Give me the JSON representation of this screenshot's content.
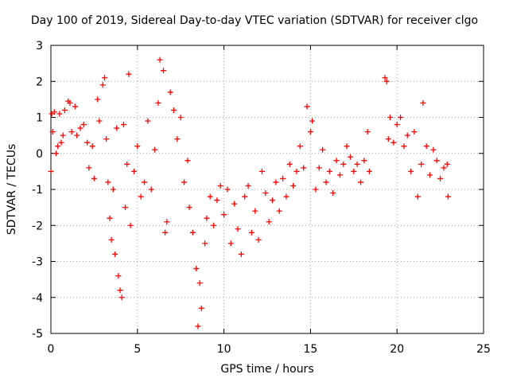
{
  "chart_data": {
    "type": "scatter",
    "title": "Day 100 of 2019, Sidereal Day-to-day VTEC variation (SDTVAR) for receiver clgo",
    "xlabel": "GPS time / hours",
    "ylabel": "SDTVAR / TECUs",
    "xlim": [
      0,
      25
    ],
    "ylim": [
      -5,
      3
    ],
    "xticks": [
      0,
      5,
      10,
      15,
      20,
      25
    ],
    "yticks": [
      -5,
      -4,
      -3,
      -2,
      -1,
      0,
      1,
      2,
      3
    ],
    "grid": true,
    "marker": "+",
    "color": "#ff0000",
    "series": [
      {
        "name": "SDTVAR",
        "points": [
          [
            0.0,
            -0.5
          ],
          [
            0.05,
            1.1
          ],
          [
            0.1,
            0.6
          ],
          [
            0.2,
            1.15
          ],
          [
            0.3,
            0.0
          ],
          [
            0.4,
            0.2
          ],
          [
            0.5,
            1.1
          ],
          [
            0.6,
            0.3
          ],
          [
            0.7,
            0.5
          ],
          [
            0.8,
            1.2
          ],
          [
            1.0,
            1.45
          ],
          [
            1.1,
            1.4
          ],
          [
            1.2,
            0.6
          ],
          [
            1.4,
            1.3
          ],
          [
            1.5,
            0.5
          ],
          [
            1.7,
            0.7
          ],
          [
            1.9,
            0.8
          ],
          [
            2.1,
            0.3
          ],
          [
            2.2,
            -0.4
          ],
          [
            2.4,
            0.2
          ],
          [
            2.5,
            -0.7
          ],
          [
            2.7,
            1.5
          ],
          [
            2.8,
            0.9
          ],
          [
            3.0,
            1.9
          ],
          [
            3.1,
            2.1
          ],
          [
            3.2,
            0.4
          ],
          [
            3.3,
            -0.8
          ],
          [
            3.4,
            -1.8
          ],
          [
            3.5,
            -2.4
          ],
          [
            3.6,
            -1.0
          ],
          [
            3.7,
            -2.8
          ],
          [
            3.8,
            0.7
          ],
          [
            3.9,
            -3.4
          ],
          [
            4.0,
            -3.8
          ],
          [
            4.1,
            -4.0
          ],
          [
            4.2,
            0.8
          ],
          [
            4.3,
            -1.5
          ],
          [
            4.4,
            -0.3
          ],
          [
            4.5,
            2.2
          ],
          [
            4.6,
            -2.0
          ],
          [
            4.8,
            -0.5
          ],
          [
            5.0,
            0.2
          ],
          [
            5.2,
            -1.2
          ],
          [
            5.4,
            -0.8
          ],
          [
            5.6,
            0.9
          ],
          [
            5.8,
            -1.0
          ],
          [
            6.0,
            0.1
          ],
          [
            6.2,
            1.4
          ],
          [
            6.3,
            2.6
          ],
          [
            6.5,
            2.3
          ],
          [
            6.6,
            -2.2
          ],
          [
            6.7,
            -1.9
          ],
          [
            6.9,
            1.7
          ],
          [
            7.1,
            1.2
          ],
          [
            7.3,
            0.4
          ],
          [
            7.5,
            1.0
          ],
          [
            7.7,
            -0.8
          ],
          [
            7.9,
            -0.2
          ],
          [
            8.0,
            -1.5
          ],
          [
            8.2,
            -2.2
          ],
          [
            8.4,
            -3.2
          ],
          [
            8.5,
            -4.8
          ],
          [
            8.6,
            -3.6
          ],
          [
            8.7,
            -4.3
          ],
          [
            8.9,
            -2.5
          ],
          [
            9.0,
            -1.8
          ],
          [
            9.2,
            -1.2
          ],
          [
            9.4,
            -2.0
          ],
          [
            9.6,
            -1.3
          ],
          [
            9.8,
            -0.9
          ],
          [
            10.0,
            -1.7
          ],
          [
            10.2,
            -1.0
          ],
          [
            10.4,
            -2.5
          ],
          [
            10.6,
            -1.4
          ],
          [
            10.8,
            -2.1
          ],
          [
            11.0,
            -2.8
          ],
          [
            11.2,
            -1.2
          ],
          [
            11.4,
            -0.9
          ],
          [
            11.6,
            -2.2
          ],
          [
            11.8,
            -1.6
          ],
          [
            12.0,
            -2.4
          ],
          [
            12.2,
            -0.5
          ],
          [
            12.4,
            -1.1
          ],
          [
            12.6,
            -1.9
          ],
          [
            12.8,
            -1.3
          ],
          [
            13.0,
            -0.8
          ],
          [
            13.2,
            -1.6
          ],
          [
            13.4,
            -0.7
          ],
          [
            13.6,
            -1.2
          ],
          [
            13.8,
            -0.3
          ],
          [
            14.0,
            -0.9
          ],
          [
            14.2,
            -0.5
          ],
          [
            14.4,
            0.2
          ],
          [
            14.6,
            -0.4
          ],
          [
            14.8,
            1.3
          ],
          [
            15.0,
            0.6
          ],
          [
            15.1,
            0.9
          ],
          [
            15.3,
            -1.0
          ],
          [
            15.5,
            -0.4
          ],
          [
            15.7,
            0.1
          ],
          [
            15.9,
            -0.8
          ],
          [
            16.1,
            -0.5
          ],
          [
            16.3,
            -1.1
          ],
          [
            16.5,
            -0.2
          ],
          [
            16.7,
            -0.6
          ],
          [
            16.9,
            -0.3
          ],
          [
            17.1,
            0.2
          ],
          [
            17.3,
            -0.1
          ],
          [
            17.5,
            -0.5
          ],
          [
            17.7,
            -0.3
          ],
          [
            17.9,
            -0.8
          ],
          [
            18.1,
            -0.2
          ],
          [
            18.3,
            0.6
          ],
          [
            18.4,
            -0.5
          ],
          [
            19.3,
            2.1
          ],
          [
            19.4,
            2.0
          ],
          [
            19.5,
            0.4
          ],
          [
            19.6,
            1.0
          ],
          [
            19.8,
            0.3
          ],
          [
            20.0,
            0.8
          ],
          [
            20.2,
            1.0
          ],
          [
            20.4,
            0.2
          ],
          [
            20.6,
            0.5
          ],
          [
            20.8,
            -0.5
          ],
          [
            21.0,
            0.6
          ],
          [
            21.2,
            -1.2
          ],
          [
            21.4,
            -0.3
          ],
          [
            21.5,
            1.4
          ],
          [
            21.7,
            0.2
          ],
          [
            21.9,
            -0.6
          ],
          [
            22.1,
            0.1
          ],
          [
            22.3,
            -0.2
          ],
          [
            22.5,
            -0.7
          ],
          [
            22.7,
            -0.4
          ],
          [
            22.9,
            -0.3
          ],
          [
            22.95,
            -1.2
          ]
        ]
      }
    ]
  }
}
